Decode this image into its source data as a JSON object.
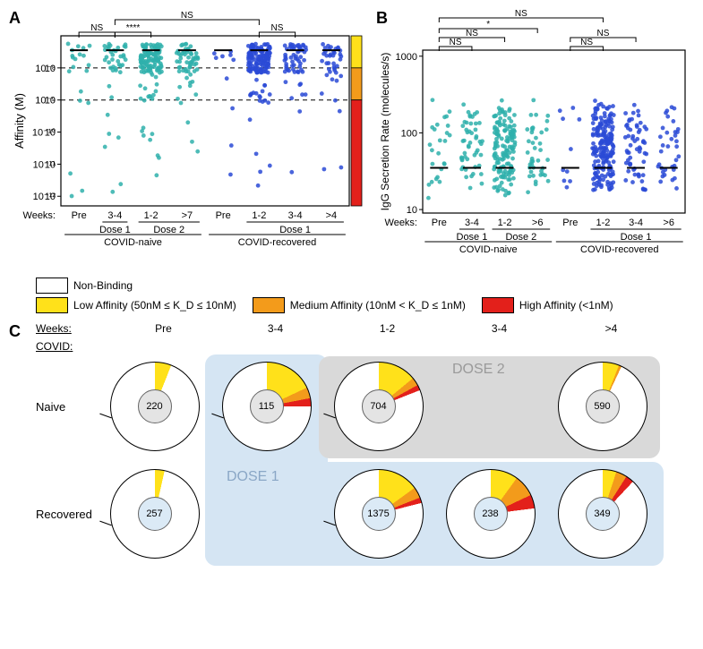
{
  "panelA": {
    "label": "A",
    "type": "scatter-strip",
    "ylabel": "Affinity (M)",
    "yscale": "log",
    "ylim": [
      1e-12,
      1e-07
    ],
    "yticks": [
      "10⁻⁸",
      "10⁻⁹",
      "10⁻¹⁰",
      "10⁻¹¹",
      "10⁻¹²"
    ],
    "dash_lines_y": [
      1e-08,
      1e-09
    ],
    "groups": [
      {
        "name": "naive",
        "color": "#2fb0ac",
        "columns": [
          {
            "label": "Pre",
            "n": 20
          },
          {
            "label": "3-4",
            "sub": "Dose 1",
            "n": 40
          },
          {
            "label": "1-2",
            "sub": "Dose 2",
            "n": 130
          },
          {
            "label": ">7",
            "sub": "Dose 2",
            "n": 60
          }
        ]
      },
      {
        "name": "recovered",
        "color": "#2a4ad6",
        "columns": [
          {
            "label": "Pre",
            "n": 10
          },
          {
            "label": "1-2",
            "sub": "Dose 1",
            "n": 160
          },
          {
            "label": "3-4",
            "sub": "Dose 1",
            "n": 60
          },
          {
            "label": ">4",
            "sub": "Dose 1",
            "n": 40
          }
        ]
      }
    ],
    "sidebar_colors": [
      "#ffe11a",
      "#f39b1b",
      "#e3201b"
    ],
    "sig_brackets": [
      {
        "from": 0,
        "to": 1,
        "text": "NS"
      },
      {
        "from": 1,
        "to": 2,
        "text": "****"
      },
      {
        "from": 5,
        "to": 6,
        "text": "NS"
      },
      {
        "from": 1,
        "to": 5,
        "text": "NS"
      }
    ],
    "cohort_labels": [
      "COVID-naive",
      "COVID-recovered"
    ],
    "weeks_label": "Weeks:",
    "marker_size": 2.4,
    "median_bar_width": 14
  },
  "panelB": {
    "label": "B",
    "type": "scatter-strip",
    "ylabel": "IgG Secretion Rate (molecules/s)",
    "yscale": "log",
    "ylim": [
      10,
      1000
    ],
    "yticks": [
      "10",
      "100",
      "1000"
    ],
    "groups": [
      {
        "name": "naive",
        "color": "#2fb0ac",
        "columns": [
          {
            "label": "Pre",
            "n": 25
          },
          {
            "label": "3-4",
            "sub": "Dose 1",
            "n": 50
          },
          {
            "label": "1-2",
            "sub": "Dose 2",
            "n": 150
          },
          {
            "label": ">6",
            "sub": "Dose 2",
            "n": 40
          }
        ]
      },
      {
        "name": "recovered",
        "color": "#2a4ad6",
        "columns": [
          {
            "label": "Pre",
            "n": 10
          },
          {
            "label": "1-2",
            "sub": "Dose 1",
            "n": 200
          },
          {
            "label": "3-4",
            "sub": "Dose 1",
            "n": 60
          },
          {
            "label": ">6",
            "sub": "Dose 1",
            "n": 35
          }
        ]
      }
    ],
    "sig_brackets": [
      {
        "from": 0,
        "to": 1,
        "text": "NS"
      },
      {
        "from": 0,
        "to": 2,
        "text": "NS"
      },
      {
        "from": 0,
        "to": 3,
        "text": "*"
      },
      {
        "from": 4,
        "to": 5,
        "text": "NS"
      },
      {
        "from": 4,
        "to": 6,
        "text": "NS"
      },
      {
        "from": 0,
        "to": 5,
        "text": "NS"
      }
    ],
    "cohort_labels": [
      "COVID-naive",
      "COVID-recovered"
    ],
    "weeks_label": "Weeks:",
    "marker_size": 2.4
  },
  "legend": {
    "items": [
      {
        "color": "#ffffff",
        "label": "Non-Binding"
      },
      {
        "color": "#ffe11a",
        "label": "Low Affinity (50nM ≤ K_D ≤ 10nM)"
      },
      {
        "color": "#f39b1b",
        "label": "Medium Affinity (10nM < K_D ≤ 1nM)"
      },
      {
        "color": "#e3201b",
        "label": "High Affinity (<1nM)"
      }
    ]
  },
  "panelC": {
    "label": "C",
    "weeks_header": "Weeks:",
    "covid_header": "COVID:",
    "columns": [
      "Pre",
      "3-4",
      "1-2",
      "3-4",
      ">4"
    ],
    "dose1_bg_color": "#d5e5f3",
    "dose2_bg_color": "#d9d9d9",
    "dose1_label": "DOSE 1",
    "dose2_label": "DOSE 2",
    "center_fill_naive": "#e4e4e4",
    "center_fill_recov": "#dbeaf6",
    "rows": [
      {
        "name": "Naive",
        "pies": [
          {
            "n": 220,
            "slices": [
              {
                "c": "#ffe11a",
                "f": 0.06
              }
            ],
            "callout": true
          },
          {
            "n": 115,
            "slices": [
              {
                "c": "#ffe11a",
                "f": 0.18
              },
              {
                "c": "#f39b1b",
                "f": 0.04
              },
              {
                "c": "#e3201b",
                "f": 0.03
              }
            ],
            "callout": true
          },
          {
            "n": 704,
            "slices": [
              {
                "c": "#ffe11a",
                "f": 0.14
              },
              {
                "c": "#f39b1b",
                "f": 0.03
              },
              {
                "c": "#e3201b",
                "f": 0.02
              }
            ],
            "callout": true
          },
          null,
          {
            "n": 590,
            "slices": [
              {
                "c": "#ffe11a",
                "f": 0.06
              },
              {
                "c": "#f39b1b",
                "f": 0.01
              }
            ]
          }
        ]
      },
      {
        "name": "Recovered",
        "pies": [
          {
            "n": 257,
            "slices": [
              {
                "c": "#ffe11a",
                "f": 0.035
              }
            ],
            "callout": true
          },
          null,
          {
            "n": 1375,
            "slices": [
              {
                "c": "#ffe11a",
                "f": 0.15
              },
              {
                "c": "#f39b1b",
                "f": 0.04
              },
              {
                "c": "#e3201b",
                "f": 0.02
              }
            ],
            "callout": true
          },
          {
            "n": 238,
            "slices": [
              {
                "c": "#ffe11a",
                "f": 0.1
              },
              {
                "c": "#f39b1b",
                "f": 0.08
              },
              {
                "c": "#e3201b",
                "f": 0.05
              }
            ]
          },
          {
            "n": 349,
            "slices": [
              {
                "c": "#ffe11a",
                "f": 0.05
              },
              {
                "c": "#f39b1b",
                "f": 0.04
              },
              {
                "c": "#e3201b",
                "f": 0.03
              }
            ]
          }
        ]
      }
    ]
  }
}
